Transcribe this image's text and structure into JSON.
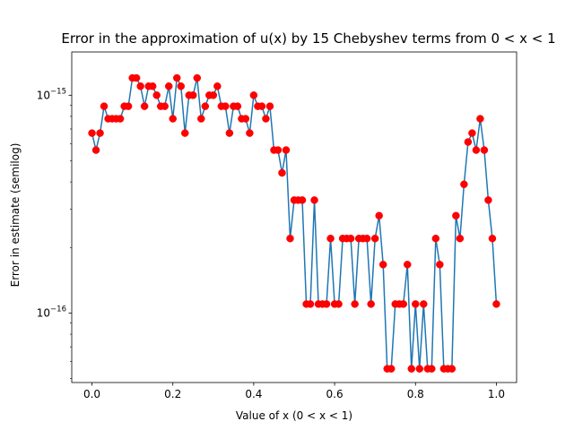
{
  "chart_data": {
    "type": "line",
    "title": "Error in the approximation of u(x) by 15 Chebyshev terms from 0 < x < 1",
    "xlabel": "Value of x (0 < x < 1)",
    "ylabel": "Error in estimate (semilog)",
    "yscale": "log",
    "xlim": [
      -0.05,
      1.05
    ],
    "ylim": [
      4.8e-17,
      1.58e-15
    ],
    "xticks": [
      {
        "value": 0.0,
        "label": "0.0"
      },
      {
        "value": 0.2,
        "label": "0.2"
      },
      {
        "value": 0.4,
        "label": "0.4"
      },
      {
        "value": 0.6,
        "label": "0.6"
      },
      {
        "value": 0.8,
        "label": "0.8"
      },
      {
        "value": 1.0,
        "label": "1.0"
      }
    ],
    "yticks": [
      {
        "value": 1e-16,
        "base": "10",
        "exponent": "−16"
      },
      {
        "value": 1e-15,
        "base": "10",
        "exponent": "−15"
      }
    ],
    "line_color": "#1f77b4",
    "marker_color": "#ff0000",
    "grid": false,
    "legend": "none",
    "x": [
      0.0,
      0.01,
      0.02,
      0.03,
      0.04,
      0.05,
      0.06,
      0.07,
      0.08,
      0.09,
      0.1,
      0.11,
      0.12,
      0.13,
      0.14,
      0.15,
      0.16,
      0.17,
      0.18,
      0.19,
      0.2,
      0.21,
      0.22,
      0.23,
      0.24,
      0.25,
      0.26,
      0.27,
      0.28,
      0.29,
      0.3,
      0.31,
      0.32,
      0.33,
      0.34,
      0.35,
      0.36,
      0.37,
      0.38,
      0.39,
      0.4,
      0.41,
      0.42,
      0.43,
      0.44,
      0.45,
      0.46,
      0.47,
      0.48,
      0.49,
      0.5,
      0.51,
      0.52,
      0.53,
      0.54,
      0.55,
      0.56,
      0.57,
      0.58,
      0.59,
      0.6,
      0.61,
      0.62,
      0.63,
      0.64,
      0.65,
      0.66,
      0.67,
      0.68,
      0.69,
      0.7,
      0.71,
      0.72,
      0.73,
      0.74,
      0.75,
      0.76,
      0.77,
      0.78,
      0.79,
      0.8,
      0.81,
      0.82,
      0.83,
      0.84,
      0.85,
      0.86,
      0.87,
      0.88,
      0.89,
      0.9,
      0.91,
      0.92,
      0.93,
      0.94,
      0.95,
      0.96,
      0.97,
      0.98,
      0.99,
      1.0
    ],
    "y": [
      6.7e-16,
      5.6e-16,
      6.7e-16,
      8.9e-16,
      7.8e-16,
      7.8e-16,
      7.8e-16,
      7.8e-16,
      8.9e-16,
      8.9e-16,
      1.2e-15,
      1.2e-15,
      1.1e-15,
      8.9e-16,
      1.1e-15,
      1.1e-15,
      1e-15,
      8.9e-16,
      8.9e-16,
      1.1e-15,
      7.8e-16,
      1.2e-15,
      1.1e-15,
      6.7e-16,
      1e-15,
      1e-15,
      1.2e-15,
      7.8e-16,
      8.9e-16,
      1e-15,
      1e-15,
      1.1e-15,
      8.9e-16,
      8.9e-16,
      6.7e-16,
      8.9e-16,
      8.9e-16,
      7.8e-16,
      7.8e-16,
      6.7e-16,
      1e-15,
      8.9e-16,
      8.9e-16,
      7.8e-16,
      8.9e-16,
      5.6e-16,
      5.6e-16,
      4.4e-16,
      5.6e-16,
      2.2e-16,
      3.3e-16,
      3.3e-16,
      3.3e-16,
      1.1e-16,
      1.1e-16,
      3.3e-16,
      1.1e-16,
      1.1e-16,
      1.1e-16,
      2.2e-16,
      1.1e-16,
      1.1e-16,
      2.2e-16,
      2.2e-16,
      2.2e-16,
      1.1e-16,
      2.2e-16,
      2.2e-16,
      2.2e-16,
      1.1e-16,
      2.2e-16,
      2.8e-16,
      1.67e-16,
      5.55e-17,
      5.55e-17,
      1.1e-16,
      1.1e-16,
      1.1e-16,
      1.67e-16,
      5.55e-17,
      1.1e-16,
      5.55e-17,
      1.1e-16,
      5.55e-17,
      5.55e-17,
      2.2e-16,
      1.67e-16,
      5.55e-17,
      5.55e-17,
      5.55e-17,
      2.8e-16,
      2.2e-16,
      3.9e-16,
      6.1e-16,
      6.7e-16,
      5.6e-16,
      7.8e-16,
      5.6e-16,
      3.3e-16,
      2.2e-16,
      1.1e-16
    ]
  }
}
